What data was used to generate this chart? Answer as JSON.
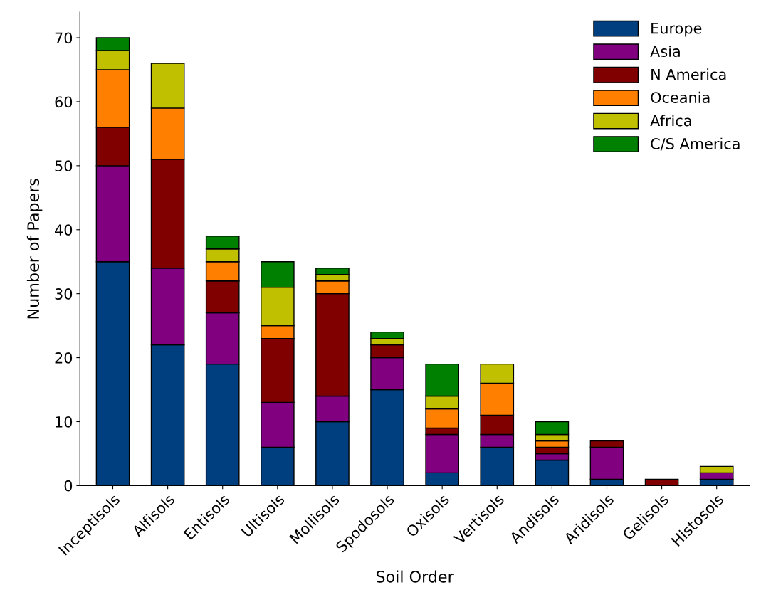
{
  "chart_data": {
    "type": "bar",
    "stacked": true,
    "xlabel": "Soil Order",
    "ylabel": "Number of Papers",
    "categories": [
      "Inceptisols",
      "Alfisols",
      "Entisols",
      "Ultisols",
      "Mollisols",
      "Spodosols",
      "Oxisols",
      "Vertisols",
      "Andisols",
      "Aridisols",
      "Gelisols",
      "Histosols"
    ],
    "series": [
      {
        "name": "Europe",
        "color": "#003f7f",
        "values": [
          35,
          22,
          19,
          6,
          10,
          15,
          2,
          6,
          4,
          1,
          null,
          1
        ]
      },
      {
        "name": "Asia",
        "color": "#800080",
        "values": [
          15,
          12,
          8,
          7,
          4,
          5,
          6,
          2,
          1,
          5,
          null,
          1
        ]
      },
      {
        "name": "N America",
        "color": "#800000",
        "values": [
          6,
          17,
          5,
          10,
          16,
          2,
          1,
          3,
          1,
          1,
          1,
          null
        ]
      },
      {
        "name": "Oceania",
        "color": "#ff8000",
        "values": [
          9,
          8,
          3,
          2,
          2,
          null,
          3,
          5,
          1,
          null,
          null,
          null
        ]
      },
      {
        "name": "Africa",
        "color": "#c0c000",
        "values": [
          3,
          7,
          2,
          6,
          1,
          1,
          2,
          3,
          1,
          null,
          null,
          1
        ]
      },
      {
        "name": "C/S America",
        "color": "#008000",
        "values": [
          2,
          null,
          2,
          4,
          1,
          1,
          5,
          null,
          2,
          null,
          null,
          null
        ]
      }
    ],
    "ylim": [
      0,
      74
    ],
    "yticks": [
      0,
      10,
      20,
      30,
      40,
      50,
      60,
      70
    ],
    "grid": false,
    "legend": "top right"
  }
}
